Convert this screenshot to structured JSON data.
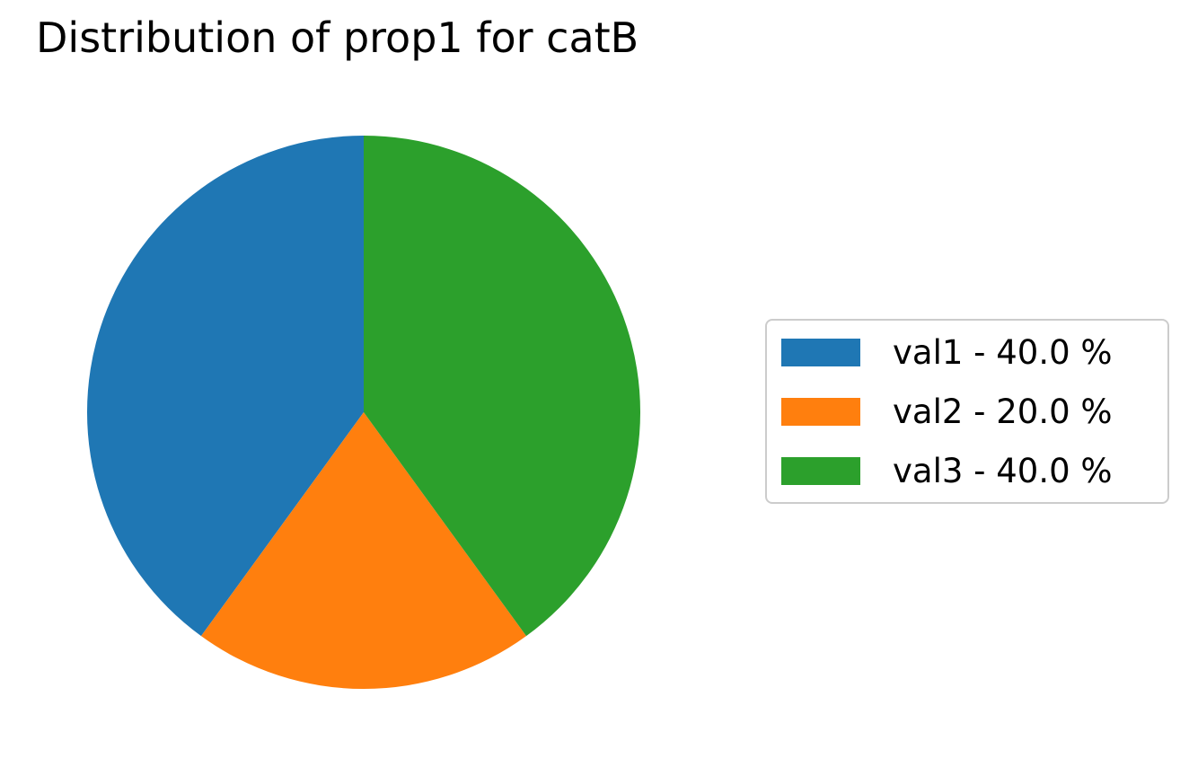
{
  "chart_data": {
    "type": "pie",
    "title": "Distribution of prop1 for catB",
    "categories": [
      "val1",
      "val2",
      "val3"
    ],
    "values": [
      40.0,
      20.0,
      40.0
    ],
    "colors": [
      "#1f77b4",
      "#ff7f0e",
      "#2ca02c"
    ],
    "start_angle_deg": 90,
    "direction": "counterclockwise",
    "legend": {
      "placement": "right",
      "entries": [
        "val1 - 40.0 %",
        "val2 - 20.0 %",
        "val3 - 40.0 %"
      ]
    }
  }
}
